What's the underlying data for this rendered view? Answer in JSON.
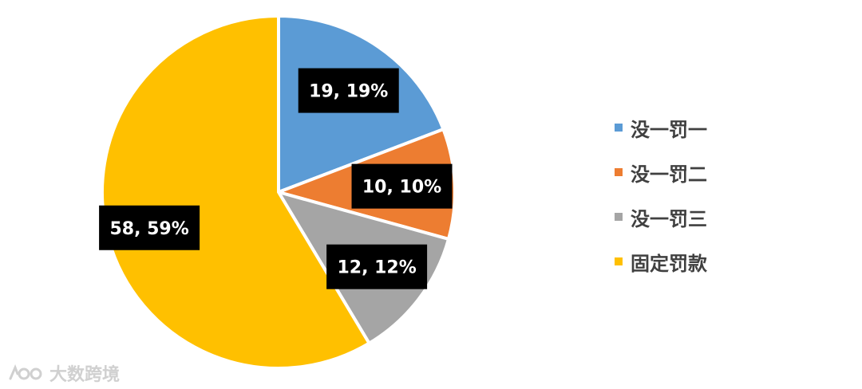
{
  "chart_data": {
    "type": "pie",
    "title": "",
    "slices": [
      {
        "name": "没一罚一",
        "value": 19,
        "label": "19, 19%",
        "color": "#5b9bd5"
      },
      {
        "name": "没一罚二",
        "value": 10,
        "label": "10, 10%",
        "color": "#ed7d31"
      },
      {
        "name": "没一罚三",
        "value": 12,
        "label": "12, 12%",
        "color": "#a5a5a5"
      },
      {
        "name": "固定罚款",
        "value": 58,
        "label": "58, 59%",
        "color": "#ffc000"
      }
    ],
    "legend_position": "right"
  },
  "watermark": {
    "text": "大数跨境"
  }
}
